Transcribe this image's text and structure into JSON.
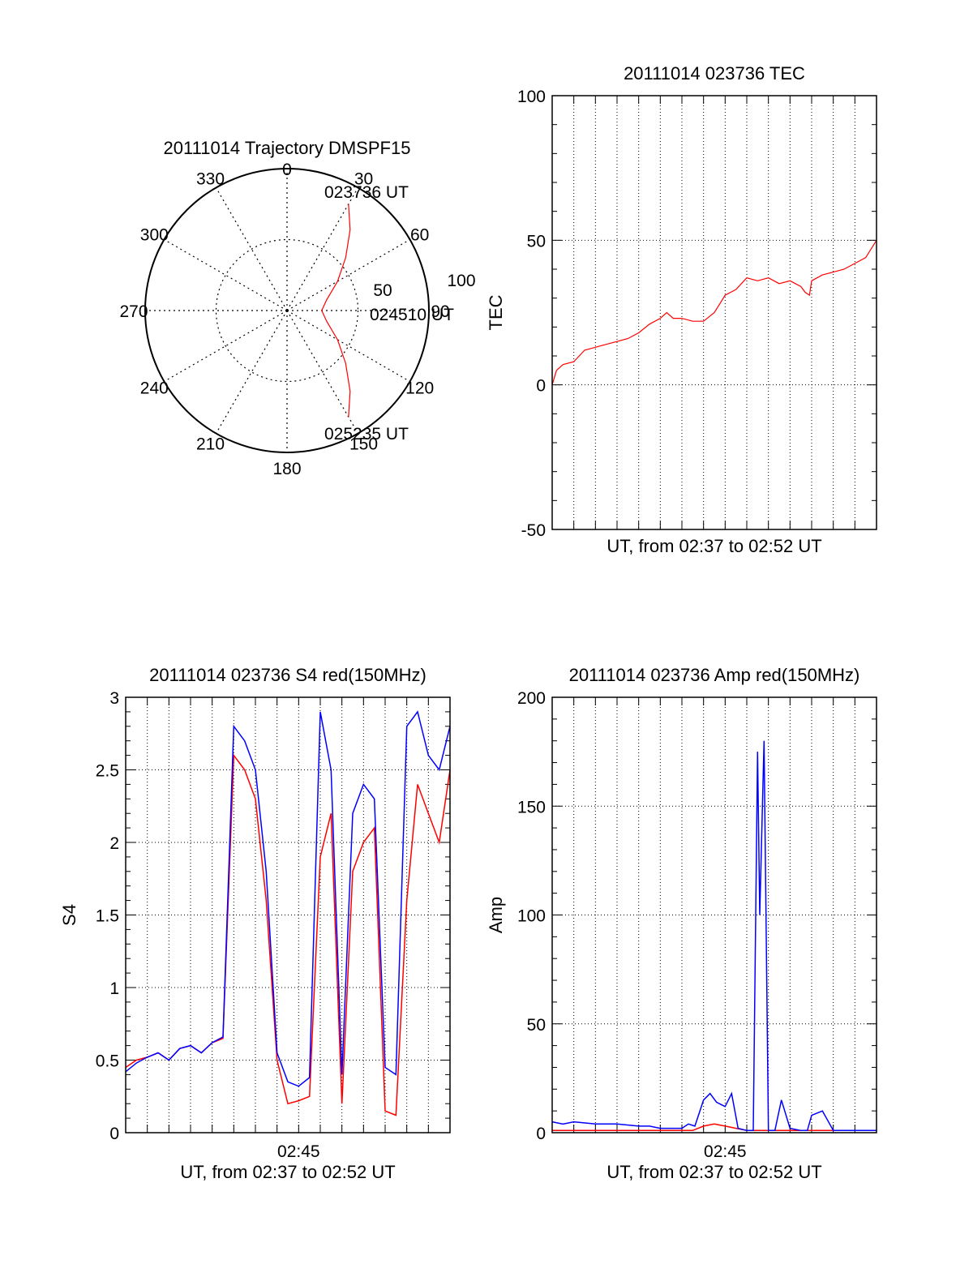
{
  "colors": {
    "red": "#ff0000",
    "blue": "#0000ff",
    "axis": "#000000",
    "grid": "#000000"
  },
  "chart_data": [
    {
      "type": "polar",
      "title": "20111014 Trajectory DMSPF15",
      "angle_labels": [
        "0",
        "30",
        "60",
        "90",
        "120",
        "150",
        "180",
        "210",
        "240",
        "270",
        "300",
        "330"
      ],
      "radial_labels": [
        "50",
        "100"
      ],
      "radial_max": 100,
      "annotations": [
        {
          "text": "023736 UT",
          "az": 30,
          "el": 12
        },
        {
          "text": "024510 UT",
          "az": 90,
          "el": 70
        },
        {
          "text": "025235 UT",
          "az": 150,
          "el": 12
        }
      ],
      "series": [
        {
          "color": "#ff0000",
          "points": [
            [
              30,
              12
            ],
            [
              38,
              25
            ],
            [
              48,
              40
            ],
            [
              60,
              53
            ],
            [
              75,
              64
            ],
            [
              90,
              68
            ],
            [
              105,
              64
            ],
            [
              120,
              53
            ],
            [
              132,
              40
            ],
            [
              142,
              25
            ],
            [
              150,
              12
            ]
          ]
        }
      ]
    },
    {
      "type": "line",
      "title": "20111014 023736 TEC",
      "xlabel": "UT, from 02:37 to 02:52 UT",
      "ylabel": "TEC",
      "xlim": [
        0,
        15
      ],
      "ylim": [
        -50,
        100
      ],
      "yticks": [
        "-50",
        "0",
        "50",
        "100"
      ],
      "xticks": [],
      "series": [
        {
          "color": "#ff0000",
          "x": [
            0,
            0.2,
            0.5,
            1,
            1.5,
            2,
            2.5,
            3,
            3.5,
            4,
            4.5,
            5,
            5.3,
            5.6,
            6,
            6.5,
            7,
            7.5,
            8,
            8.5,
            9,
            9.5,
            10,
            10.5,
            11,
            11.5,
            11.7,
            11.9,
            12,
            12.5,
            13,
            13.5,
            14,
            14.5,
            15
          ],
          "y": [
            0,
            5,
            7,
            8,
            12,
            13,
            14,
            15,
            16,
            18,
            21,
            23,
            25,
            23,
            23,
            22,
            22,
            25,
            31,
            33,
            37,
            36,
            37,
            35,
            36,
            34,
            32,
            31,
            36,
            38,
            39,
            40,
            42,
            44,
            50
          ]
        }
      ]
    },
    {
      "type": "line",
      "title": "20111014 023736 S4 red(150MHz)",
      "xlabel": "UT, from 02:37 to 02:52 UT",
      "ylabel": "S4",
      "xlim": [
        0,
        15
      ],
      "ylim": [
        0,
        3
      ],
      "yticks": [
        "0",
        "0.5",
        "1",
        "1.5",
        "2",
        "2.5",
        "3"
      ],
      "xticks": [
        {
          "x": 8,
          "label": "02:45"
        }
      ],
      "series": [
        {
          "color": "#ff0000",
          "x": [
            0,
            0.5,
            1,
            1.5,
            2,
            2.5,
            3,
            3.5,
            4,
            4.5,
            5,
            5.5,
            6,
            6.5,
            7,
            7.5,
            8,
            8.5,
            9,
            9.5,
            10,
            10.5,
            11,
            11.5,
            12,
            12.5,
            13,
            13.5,
            14,
            14.5,
            15
          ],
          "y": [
            0.45,
            0.5,
            0.52,
            0.55,
            0.5,
            0.58,
            0.6,
            0.55,
            0.62,
            0.65,
            2.6,
            2.5,
            2.3,
            1.6,
            0.5,
            0.2,
            0.22,
            0.25,
            1.9,
            2.2,
            0.2,
            1.8,
            2.0,
            2.1,
            0.15,
            0.12,
            1.6,
            2.4,
            2.2,
            2.0,
            2.5
          ]
        },
        {
          "color": "#0000ff",
          "x": [
            0,
            0.5,
            1,
            1.5,
            2,
            2.5,
            3,
            3.5,
            4,
            4.5,
            5,
            5.5,
            6,
            6.5,
            7,
            7.5,
            8,
            8.5,
            9,
            9.5,
            10,
            10.5,
            11,
            11.5,
            12,
            12.5,
            13,
            13.5,
            14,
            14.5,
            15
          ],
          "y": [
            0.42,
            0.48,
            0.52,
            0.55,
            0.5,
            0.58,
            0.6,
            0.55,
            0.62,
            0.66,
            2.8,
            2.7,
            2.5,
            1.8,
            0.55,
            0.35,
            0.32,
            0.38,
            2.9,
            2.5,
            0.4,
            2.2,
            2.4,
            2.3,
            0.45,
            0.4,
            2.8,
            2.9,
            2.6,
            2.5,
            2.8
          ]
        }
      ]
    },
    {
      "type": "line",
      "title": "20111014 023736 Amp red(150MHz)",
      "xlabel": "UT, from 02:37 to 02:52 UT",
      "ylabel": "Amp",
      "xlim": [
        0,
        15
      ],
      "ylim": [
        0,
        200
      ],
      "yticks": [
        "0",
        "50",
        "100",
        "150",
        "200"
      ],
      "xticks": [
        {
          "x": 8,
          "label": "02:45"
        }
      ],
      "series": [
        {
          "color": "#ff0000",
          "x": [
            0,
            1,
            2,
            3,
            4,
            5,
            5.5,
            6,
            6.5,
            7,
            7.5,
            8,
            8.5,
            9,
            9.5,
            10,
            10.5,
            11,
            11.5,
            12,
            13,
            14,
            15
          ],
          "y": [
            1,
            1,
            1,
            1,
            1,
            1,
            1,
            1,
            1,
            3,
            4,
            3,
            2,
            1,
            1,
            1,
            1,
            1,
            1,
            1,
            1,
            1,
            1
          ]
        },
        {
          "color": "#0000ff",
          "x": [
            0,
            0.5,
            1,
            2,
            3,
            4,
            4.5,
            5,
            5.5,
            6,
            6.3,
            6.6,
            7,
            7.3,
            7.6,
            8,
            8.3,
            8.6,
            9,
            9.3,
            9.5,
            9.6,
            9.8,
            10,
            10.3,
            10.6,
            11,
            11.5,
            11.8,
            12,
            12.5,
            13,
            13.5,
            14,
            15
          ],
          "y": [
            5,
            4,
            5,
            4,
            4,
            3,
            3,
            2,
            2,
            2,
            4,
            3,
            15,
            18,
            14,
            12,
            18,
            2,
            1,
            1,
            175,
            100,
            180,
            1,
            1,
            15,
            2,
            1,
            1,
            8,
            10,
            1,
            1,
            1,
            1
          ]
        }
      ]
    }
  ]
}
